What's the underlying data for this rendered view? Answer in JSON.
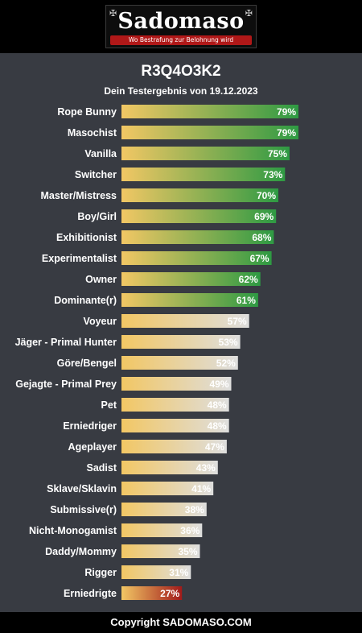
{
  "header": {
    "logo_text": "Sadomaso",
    "logo_tagline": "Wo Bestrafung zur Belohnung wird",
    "corner_glyph": "✠"
  },
  "title": "R3Q4O3K2",
  "subtitle": "Dein Testergebnis von 19.12.2023",
  "footer": "Copyright SADOMASO.COM",
  "colors": {
    "background": "#383b42",
    "bar_start": "#f2c764",
    "bar_high": "#2e9a43",
    "bar_mid": "#dedede",
    "bar_low": "#a11a1a"
  },
  "chart_data": {
    "type": "bar",
    "orientation": "horizontal",
    "value_suffix": "%",
    "xlim": [
      0,
      100
    ],
    "grid": false,
    "categories": [
      "Rope Bunny",
      "Masochist",
      "Vanilla",
      "Switcher",
      "Master/Mistress",
      "Boy/Girl",
      "Exhibitionist",
      "Experimentalist",
      "Owner",
      "Dominante(r)",
      "Voyeur",
      "Jäger - Primal Hunter",
      "Göre/Bengel",
      "Gejagte - Primal Prey",
      "Pet",
      "Erniedriger",
      "Ageplayer",
      "Sadist",
      "Sklave/Sklavin",
      "Submissive(r)",
      "Nicht-Monogamist",
      "Daddy/Mommy",
      "Rigger",
      "Erniedrigte"
    ],
    "values": [
      79,
      79,
      75,
      73,
      70,
      69,
      68,
      67,
      62,
      61,
      57,
      53,
      52,
      49,
      48,
      48,
      47,
      43,
      41,
      38,
      36,
      35,
      31,
      27
    ],
    "tiers": [
      "high",
      "high",
      "high",
      "high",
      "high",
      "high",
      "high",
      "high",
      "high",
      "high",
      "mid",
      "mid",
      "mid",
      "mid",
      "mid",
      "mid",
      "mid",
      "mid",
      "mid",
      "mid",
      "mid",
      "mid",
      "mid",
      "low"
    ]
  }
}
